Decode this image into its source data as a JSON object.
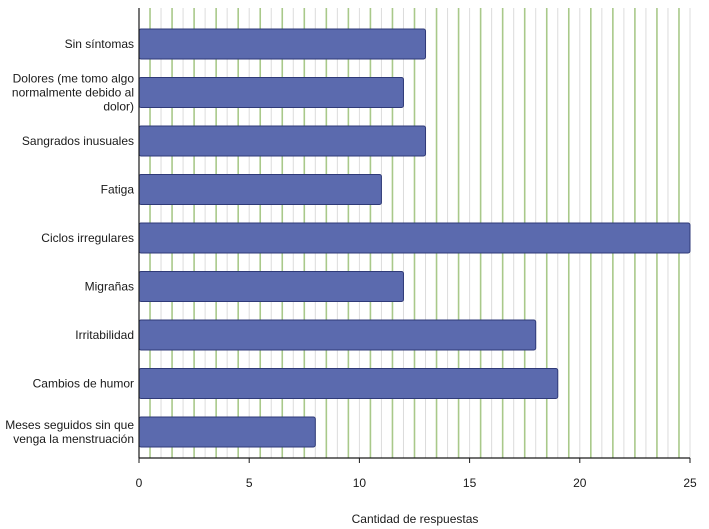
{
  "chart_data": {
    "type": "bar",
    "orientation": "horizontal",
    "title": "",
    "xlabel": "Cantidad de respuestas",
    "ylabel": "",
    "xlim": [
      0,
      25
    ],
    "xticks": [
      0,
      5,
      10,
      15,
      20,
      25
    ],
    "grid": "vertical",
    "categories": [
      "Sin síntomas",
      "Dolores (me tomo algo normalmente debido al dolor)",
      "Sangrados inusuales",
      "Fatiga",
      "Ciclos irregulares",
      "Migrañas",
      "Irritabilidad",
      "Cambios de humor",
      "Meses seguidos sin que venga la menstruación"
    ],
    "category_lines": [
      [
        "Sin síntomas"
      ],
      [
        "Dolores (me tomo algo",
        "normalmente debido al",
        "dolor)"
      ],
      [
        "Sangrados inusuales"
      ],
      [
        "Fatiga"
      ],
      [
        "Ciclos irregulares"
      ],
      [
        "Migrañas"
      ],
      [
        "Irritabilidad"
      ],
      [
        "Cambios de humor"
      ],
      [
        "Meses seguidos sin que",
        "venga la menstruación"
      ]
    ],
    "values": [
      13,
      12,
      13,
      11,
      25,
      12,
      18,
      19,
      8
    ],
    "colors": {
      "bar": "#5b6aae",
      "bar_stroke": "#2f3a78",
      "grid_major": "#a9c98a",
      "grid_minor": "#dcdcdc",
      "axis": "#1a1a1a"
    }
  }
}
